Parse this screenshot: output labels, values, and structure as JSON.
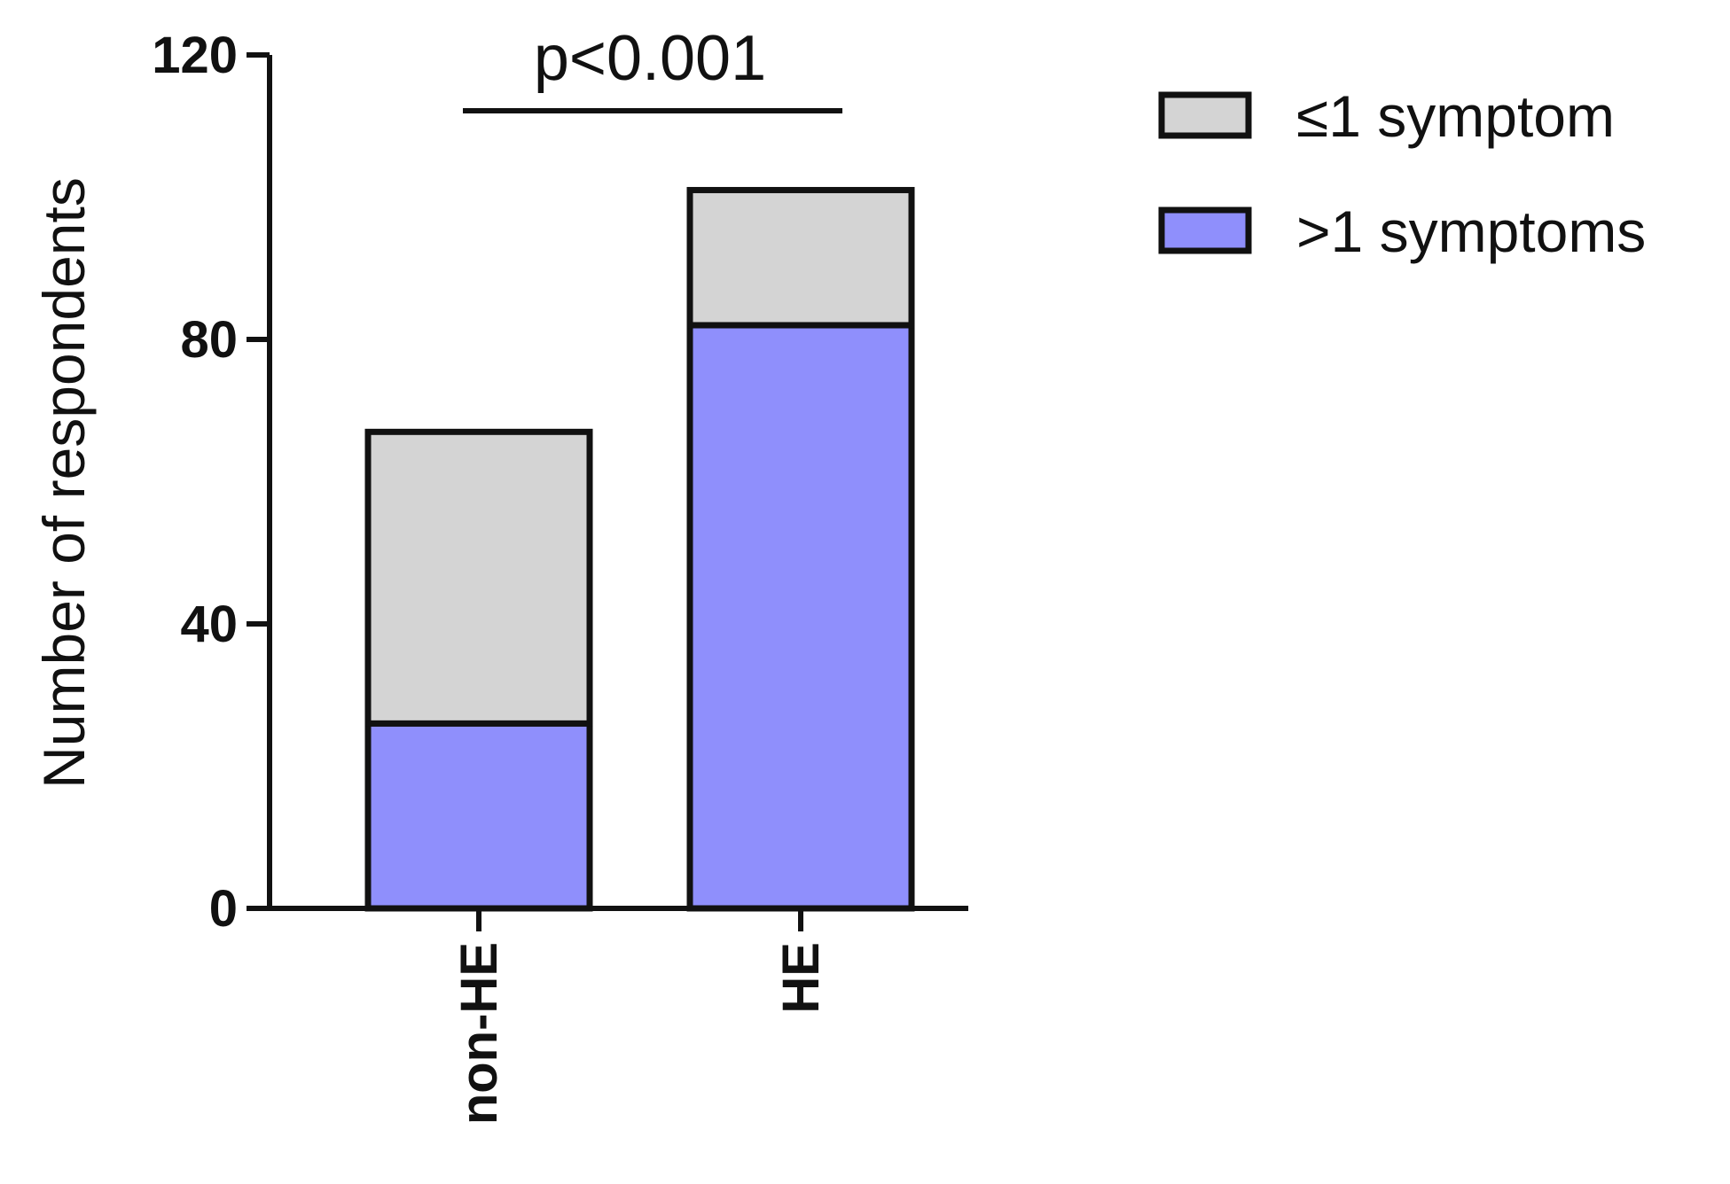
{
  "chart_data": {
    "type": "bar",
    "stacked": true,
    "categories": [
      "non-HE",
      "HE"
    ],
    "series": [
      {
        "name": ">1 symptoms",
        "values": [
          26,
          82
        ],
        "color": "#8f8ffc"
      },
      {
        "name": "≤1 symptom",
        "values": [
          41,
          19
        ],
        "color": "#d4d4d4"
      }
    ],
    "legend_order": [
      "≤1 symptom",
      ">1 symptoms"
    ],
    "legend_position": "top-right",
    "ylabel": "Number of respondents",
    "xlabel": "",
    "ylim": [
      0,
      120
    ],
    "yticks": [
      0,
      40,
      80,
      120
    ],
    "grid": false,
    "annotation": {
      "text": "p<0.001",
      "between": [
        "non-HE",
        "HE"
      ]
    }
  }
}
